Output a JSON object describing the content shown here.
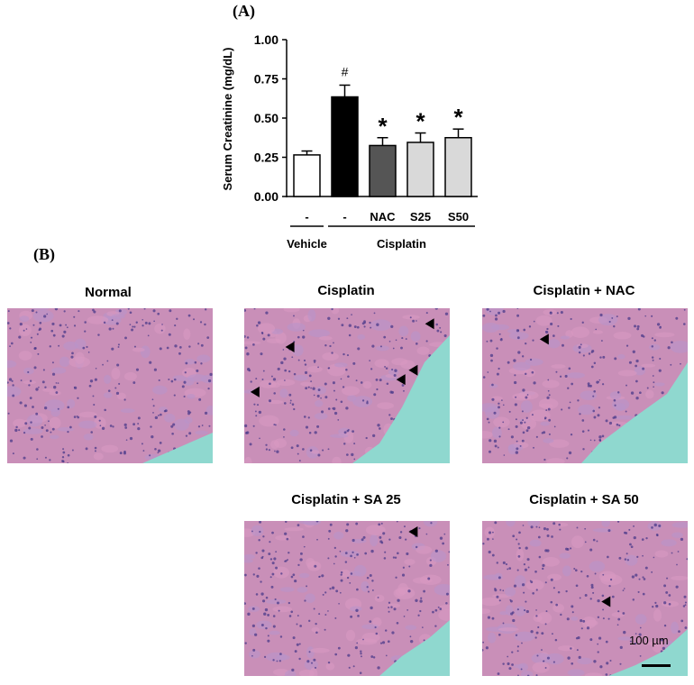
{
  "panel_a_label": "(A)",
  "panel_b_label": "(B)",
  "chart_data": {
    "type": "bar",
    "ylabel": "Serum Creatinine (mg/dL)",
    "ylim": [
      0,
      1.0
    ],
    "yticks": [
      "0.00",
      "0.25",
      "0.50",
      "0.75",
      "1.00"
    ],
    "categories": [
      "-",
      "-",
      "NAC",
      "S25",
      "S50"
    ],
    "values": [
      0.265,
      0.635,
      0.325,
      0.345,
      0.375
    ],
    "errors": [
      0.025,
      0.075,
      0.05,
      0.06,
      0.055
    ],
    "bar_colors": [
      "#ffffff",
      "#000000",
      "#555555",
      "#d9d9d9",
      "#d9d9d9"
    ],
    "significance": [
      "",
      "#",
      "*",
      "*",
      "*"
    ],
    "groups": [
      {
        "label": "Vehicle",
        "span": [
          0,
          0
        ]
      },
      {
        "label": "Cisplatin",
        "span": [
          1,
          4
        ]
      }
    ]
  },
  "micrographs": [
    {
      "title": "Normal",
      "arrows": []
    },
    {
      "title": "Cisplatin",
      "arrows": [
        [
          0.88,
          0.1
        ],
        [
          0.2,
          0.25
        ],
        [
          0.8,
          0.4
        ],
        [
          0.74,
          0.46
        ],
        [
          0.03,
          0.54
        ]
      ]
    },
    {
      "title": "Cisplatin + NAC",
      "arrows": [
        [
          0.28,
          0.2
        ]
      ]
    },
    {
      "title": "Cisplatin + SA 25",
      "arrows": [
        [
          0.8,
          0.07
        ]
      ]
    },
    {
      "title": "Cisplatin + SA 50",
      "arrows": [
        [
          0.58,
          0.52
        ]
      ]
    }
  ],
  "scale_bar_label": "100 µm",
  "colors": {
    "tissue": "#c98fb8",
    "background_lumen": "#8fd8cf",
    "nuclei": "#4a3a8a"
  }
}
